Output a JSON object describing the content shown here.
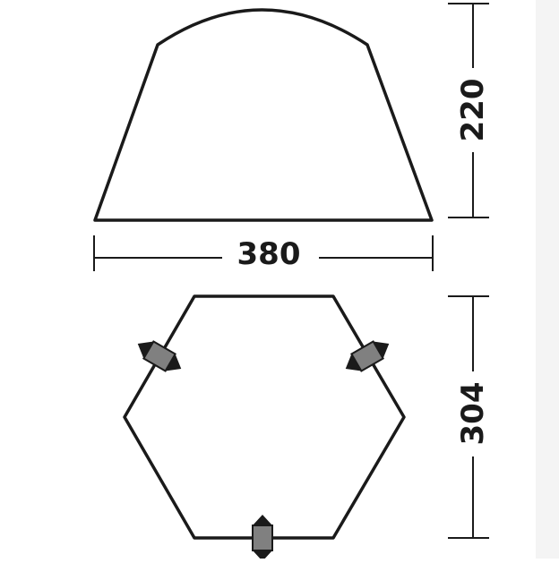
{
  "diagram": {
    "side_view": {
      "width_label": "380",
      "height_label": "220"
    },
    "top_view": {
      "depth_label": "304",
      "entrances": [
        {
          "id": "entrance-left",
          "direction": "up-left"
        },
        {
          "id": "entrance-right",
          "direction": "up-right"
        },
        {
          "id": "entrance-bottom",
          "direction": "down"
        }
      ]
    }
  },
  "colors": {
    "outline": "#1a1a1a",
    "door": "#808080",
    "background": "#ffffff"
  }
}
